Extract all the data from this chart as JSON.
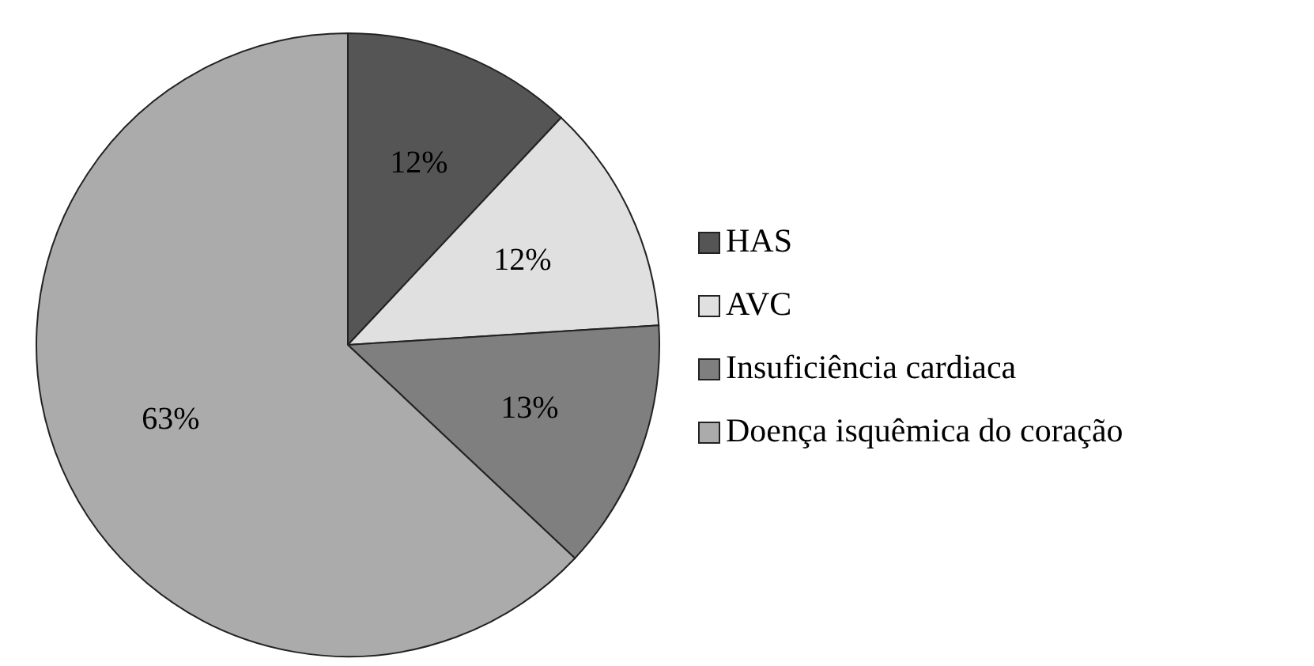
{
  "chart_data": {
    "type": "pie",
    "categories": [
      "HAS",
      "AVC",
      "Insuficiência cardiaca",
      "Doença isquêmica do coração"
    ],
    "values": [
      12,
      12,
      13,
      63
    ],
    "colors": [
      "#555555",
      "#e0e0e0",
      "#7f7f7f",
      "#ababab"
    ],
    "value_labels": [
      "12%",
      "12%",
      "13%",
      "63%"
    ],
    "legend": "right"
  }
}
